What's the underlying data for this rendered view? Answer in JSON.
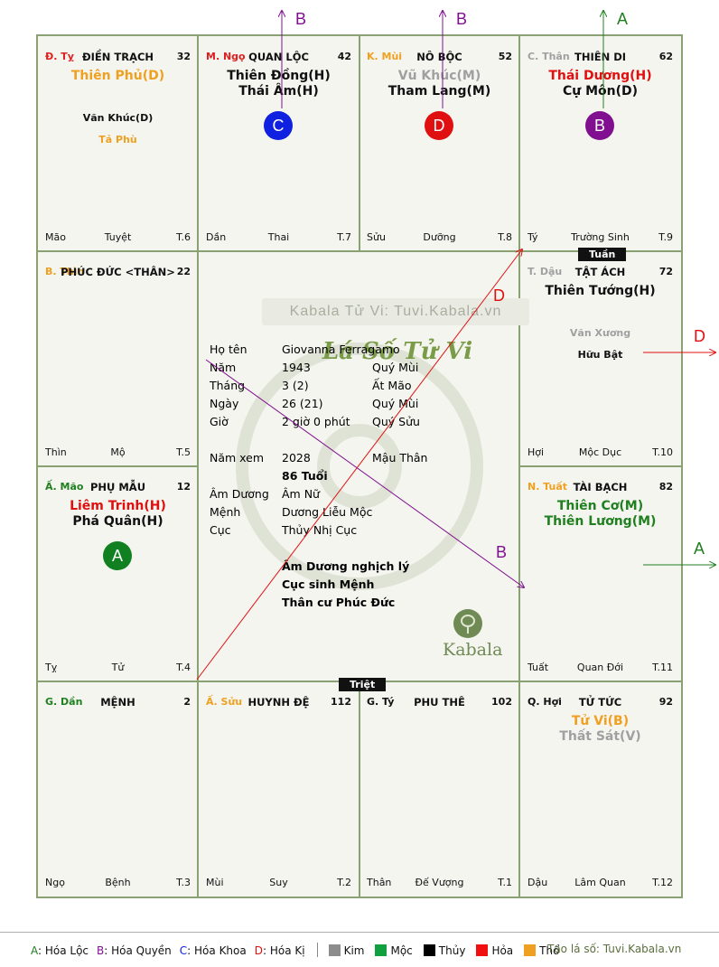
{
  "cells": [
    {
      "id": "ty",
      "can": "Đ. Tỵ",
      "can_color": "#e02020",
      "name": "ĐIỀN TRẠCH",
      "num": "32",
      "main": [
        {
          "t": "Thiên Phủ(D)",
          "c": "#f0a020"
        }
      ],
      "minor": [
        {
          "t": "Văn Khúc(D)",
          "c": "#111"
        },
        {
          "t": "Tả Phù",
          "c": "#f0a020"
        }
      ],
      "bl": "Mão",
      "bm": "Tuyệt",
      "br": "T.6"
    },
    {
      "id": "ngo",
      "can": "M. Ngọ",
      "can_color": "#e02020",
      "name": "QUAN LỘC",
      "num": "42",
      "main": [
        {
          "t": "Thiên Đồng(H)",
          "c": "#111"
        },
        {
          "t": "Thái Âm(H)",
          "c": "#111"
        }
      ],
      "minor": [],
      "badge": {
        "t": "C",
        "c": "#1020e0"
      },
      "bl": "Dần",
      "bm": "Thai",
      "br": "T.7"
    },
    {
      "id": "mui",
      "can": "K. Mùi",
      "can_color": "#f0a020",
      "name": "NÔ BỘC",
      "num": "52",
      "main": [
        {
          "t": "Vũ Khúc(M)",
          "c": "#a0a0a0"
        },
        {
          "t": "Tham Lang(M)",
          "c": "#111"
        }
      ],
      "minor": [],
      "badge": {
        "t": "D",
        "c": "#e01010"
      },
      "bl": "Sửu",
      "bm": "Dưỡng",
      "br": "T.8"
    },
    {
      "id": "than",
      "can": "C. Thân",
      "can_color": "#a0a0a0",
      "name": "THIÊN DI",
      "num": "62",
      "main": [
        {
          "t": "Thái Dương(H)",
          "c": "#e01010"
        },
        {
          "t": "Cự Môn(D)",
          "c": "#111"
        }
      ],
      "minor": [],
      "badge": {
        "t": "B",
        "c": "#801090"
      },
      "bl": "Tý",
      "bm": "Trường Sinh",
      "br": "T.9"
    },
    {
      "id": "thin",
      "can": "B. Thìn",
      "can_color": "#f0a020",
      "name": "PHÚC ĐỨC <THÂN>",
      "num": "22",
      "main": [],
      "minor": [],
      "bl": "Thìn",
      "bm": "Mộ",
      "br": "T.5"
    },
    {
      "id": "dau",
      "can": "T. Dậu",
      "can_color": "#a0a0a0",
      "name": "TẬT ÁCH",
      "num": "72",
      "main": [
        {
          "t": "Thiên Tướng(H)",
          "c": "#111"
        }
      ],
      "minor": [
        {
          "t": "Văn Xương",
          "c": "#a0a0a0"
        },
        {
          "t": "Hữu Bật",
          "c": "#111"
        }
      ],
      "bl": "Hợi",
      "bm": "Mộc Dục",
      "br": "T.10"
    },
    {
      "id": "mao",
      "can": "Ấ. Mão",
      "can_color": "#208020",
      "name": "PHỤ MẪU",
      "num": "12",
      "main": [
        {
          "t": "Liêm Trinh(H)",
          "c": "#e01010"
        },
        {
          "t": "Phá Quân(H)",
          "c": "#111"
        }
      ],
      "minor": [],
      "badge": {
        "t": "A",
        "c": "#108020"
      },
      "bl": "Tỵ",
      "bm": "Tử",
      "br": "T.4"
    },
    {
      "id": "tuat",
      "can": "N. Tuất",
      "can_color": "#f0a020",
      "name": "TÀI BẠCH",
      "num": "82",
      "main": [
        {
          "t": "Thiên Cơ(M)",
          "c": "#208020"
        },
        {
          "t": "Thiên Lương(M)",
          "c": "#208020"
        }
      ],
      "minor": [],
      "bl": "Tuất",
      "bm": "Quan Đới",
      "br": "T.11"
    },
    {
      "id": "dan",
      "can": "G. Dần",
      "can_color": "#208020",
      "name": "MỆNH",
      "num": "2",
      "main": [],
      "minor": [],
      "bl": "Ngọ",
      "bm": "Bệnh",
      "br": "T.3"
    },
    {
      "id": "suu",
      "can": "Ấ. Sửu",
      "can_color": "#f0a020",
      "name": "HUYNH ĐỆ",
      "num": "112",
      "main": [],
      "minor": [],
      "bl": "Mùi",
      "bm": "Suy",
      "br": "T.2"
    },
    {
      "id": "tyy",
      "can": "G. Tý",
      "can_color": "#111",
      "name": "PHU THÊ",
      "num": "102",
      "main": [],
      "minor": [],
      "bl": "Thân",
      "bm": "Đế Vượng",
      "br": "T.1"
    },
    {
      "id": "hoi",
      "can": "Q. Hợi",
      "can_color": "#111",
      "name": "TỬ TỨC",
      "num": "92",
      "main": [
        {
          "t": "Tử Vi(B)",
          "c": "#f0a020"
        },
        {
          "t": "Thất Sát(V)",
          "c": "#a0a0a0"
        }
      ],
      "minor": [],
      "bl": "Dậu",
      "bm": "Lâm Quan",
      "br": "T.12"
    }
  ],
  "tags": {
    "tuan": "Tuần",
    "triet": "Triệt"
  },
  "center": {
    "watermark": "Kabala Tử Vi: Tuvi.Kabala.vn",
    "title": "Lá Số Tử Vi",
    "rows": [
      {
        "lab": "Họ tên",
        "v1": "Giovanna Ferragamo",
        "v2": ""
      },
      {
        "lab": "Năm",
        "v1": "1943",
        "v2": "Quý Mùi"
      },
      {
        "lab": "Tháng",
        "v1": "3  (2)",
        "v2": "Ất Mão"
      },
      {
        "lab": "Ngày",
        "v1": "26  (21)",
        "v2": "Quý Mùi"
      },
      {
        "lab": "Giờ",
        "v1": "2 giờ 0 phút",
        "v2": "Quý Sửu"
      }
    ],
    "nam_xem": {
      "lab": "Năm xem",
      "v1": "2028",
      "v2": "Mậu Thân"
    },
    "tuoi": "86 Tuổi",
    "rows2": [
      {
        "lab": "Âm Dương",
        "v1": "Âm Nữ"
      },
      {
        "lab": "Mệnh",
        "v1": "Dương Liễu Mộc"
      },
      {
        "lab": "Cục",
        "v1": "Thủy Nhị Cục"
      }
    ],
    "notes": [
      "Âm Dương nghịch lý",
      "Cục sinh Mệnh",
      "Thân cư Phúc Đức"
    ],
    "logo": "Kabala"
  },
  "arrows": {
    "a": "A",
    "b": "B",
    "d": "D"
  },
  "arrow_colors": {
    "a": "#208020",
    "b": "#801090",
    "d": "#e01010"
  },
  "legend": {
    "hoa": [
      {
        "k": "A",
        "t": ": Hóa Lộc",
        "c": "#208020"
      },
      {
        "k": "B",
        "t": ": Hóa Quyền",
        "c": "#801090"
      },
      {
        "k": "C",
        "t": ": Hóa Khoa",
        "c": "#1020e0"
      },
      {
        "k": "D",
        "t": ": Hóa Kị",
        "c": "#e01010"
      }
    ],
    "elements": [
      {
        "t": "Kim",
        "c": "#8c8c8c"
      },
      {
        "t": "Mộc",
        "c": "#10a040"
      },
      {
        "t": "Thủy",
        "c": "#000000"
      },
      {
        "t": "Hỏa",
        "c": "#f01010"
      },
      {
        "t": "Thổ",
        "c": "#f0a020"
      }
    ],
    "site": "Tạo lá số: Tuvi.Kabala.vn"
  }
}
